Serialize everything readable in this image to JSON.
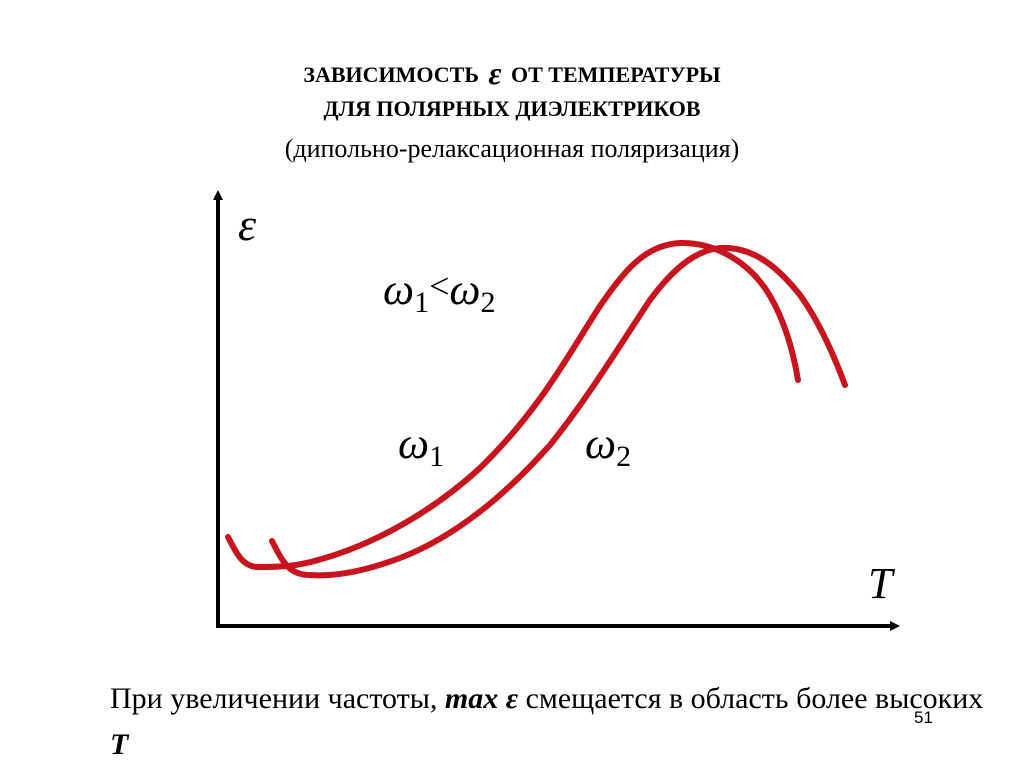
{
  "title": {
    "line1_prefix": "ЗАВИСИМОСТЬ",
    "line1_symbol": "ε",
    "line1_suffix": "ОТ ТЕМПЕРАТУРЫ",
    "line2": "ДЛЯ ПОЛЯРНЫХ ДИЭЛЕКТРИКОВ",
    "subtitle": "(дипольно-релаксационная поляризация)"
  },
  "graph": {
    "y_axis_label": "ε",
    "x_axis_label": "T",
    "relation_label": {
      "w1": "ω",
      "sub1": "1",
      "lt": "<",
      "w2": "ω",
      "sub2": "2"
    },
    "curve1_label": {
      "w": "ω",
      "sub": "1"
    },
    "curve2_label": {
      "w": "ω",
      "sub": "2"
    },
    "curve_color": "#c8141e",
    "axis_color": "#000000"
  },
  "footer": {
    "text1": "При увеличении частоты, ",
    "em1": "max ε",
    "text2": " смещается в область более высоких ",
    "em2": "T"
  },
  "slide_number": "51"
}
